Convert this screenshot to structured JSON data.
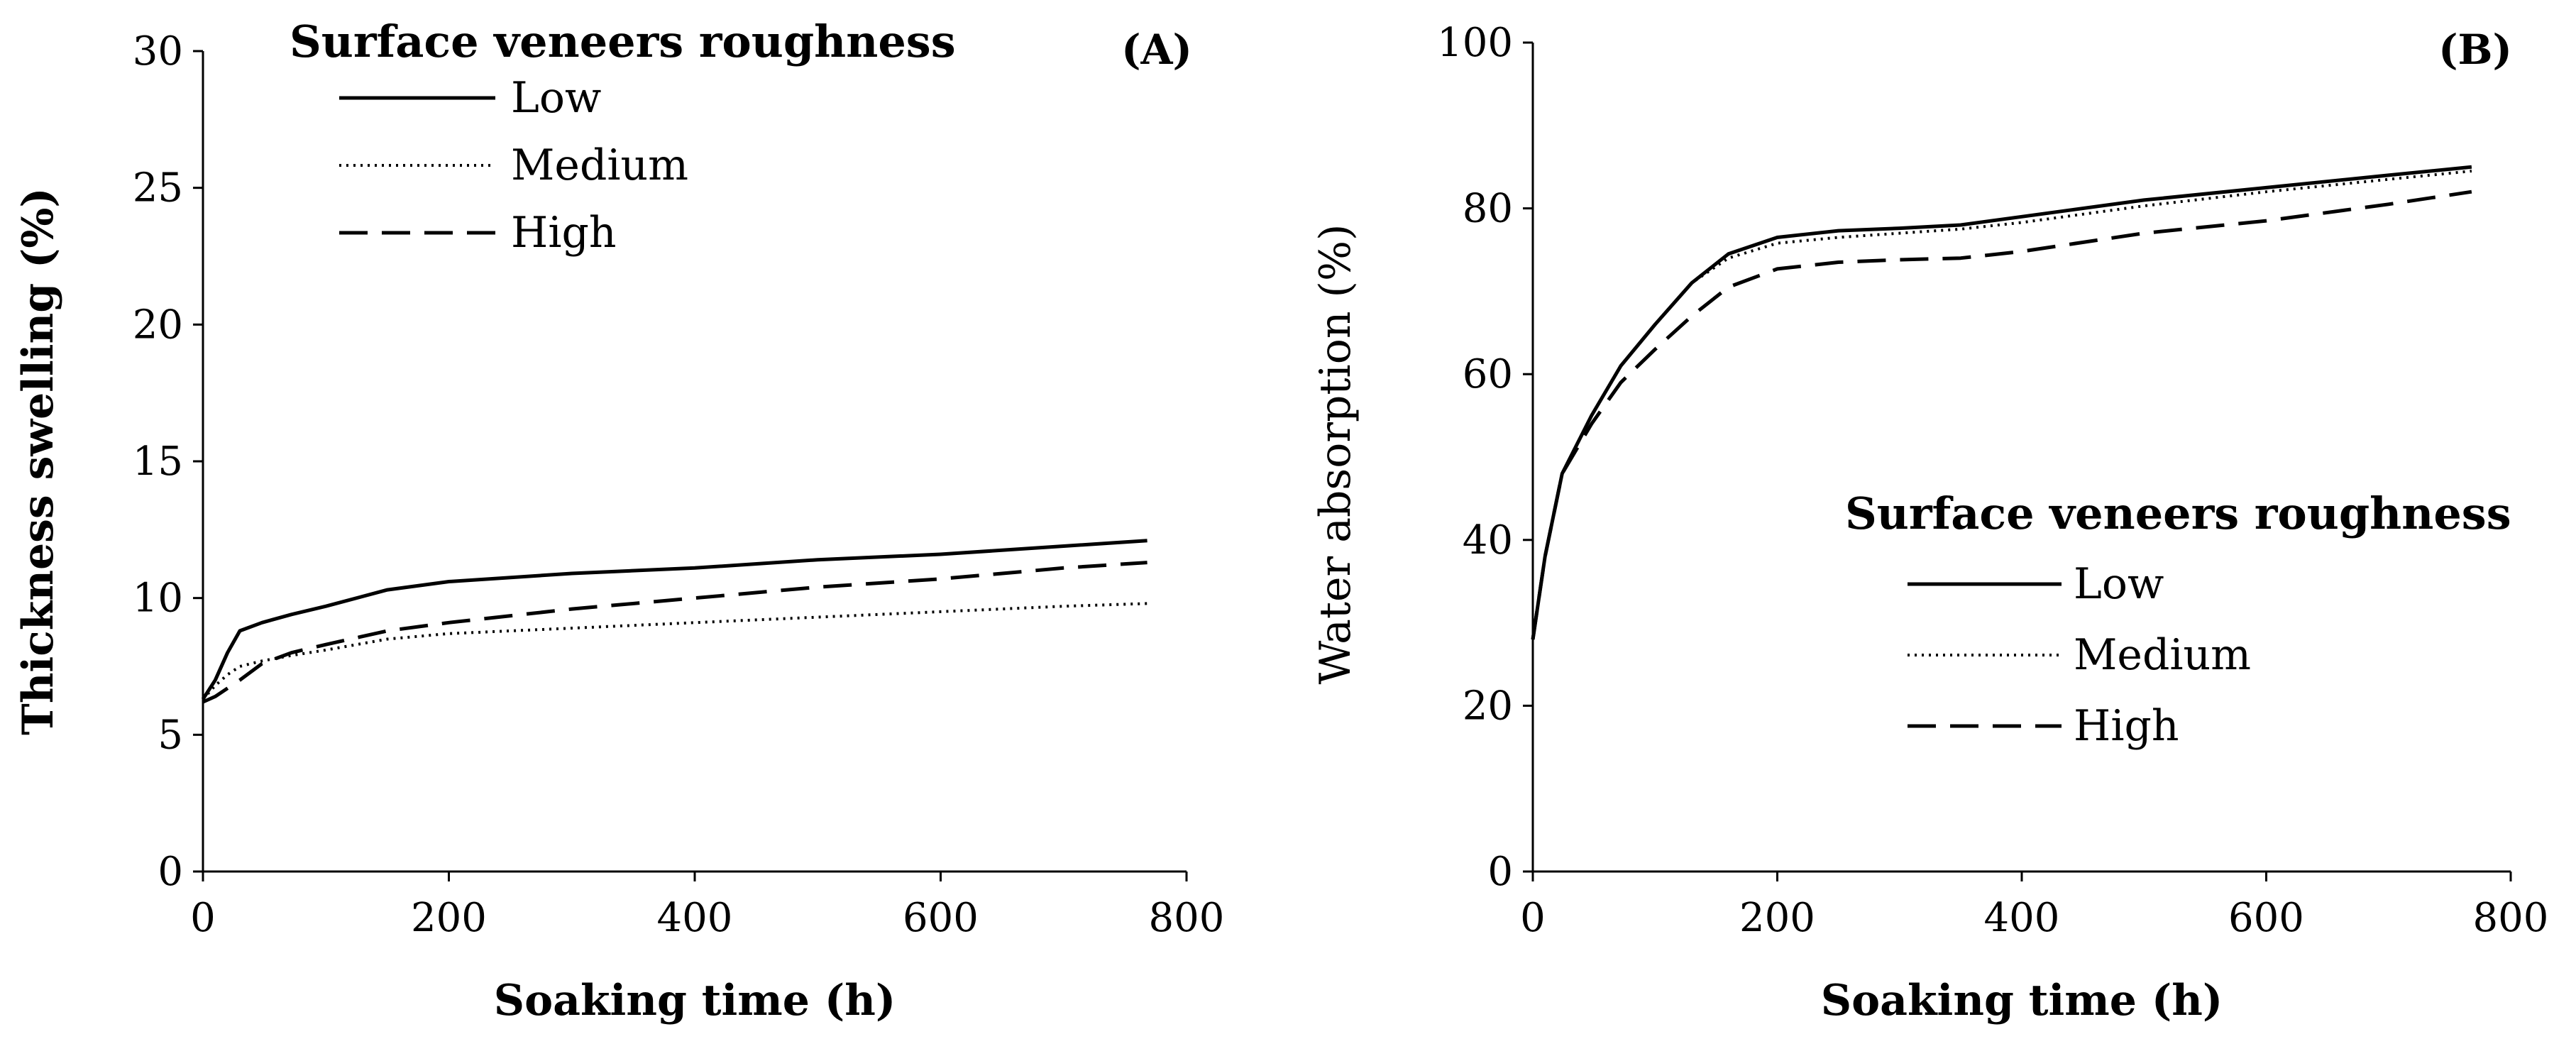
{
  "chart_data": [
    {
      "type": "line",
      "panel_label": "(A)",
      "xlabel": "Soaking time (h)",
      "ylabel": "Thickness swelling (%)",
      "xlim": [
        0,
        800
      ],
      "ylim": [
        0,
        30
      ],
      "xticks": [
        0,
        200,
        400,
        600,
        800
      ],
      "yticks": [
        0,
        5,
        10,
        15,
        20,
        25,
        30
      ],
      "grid": false,
      "legend": {
        "title": "Surface veneers roughness",
        "placement": "top-left",
        "entries": [
          "Low",
          "Medium",
          "High"
        ]
      },
      "series": [
        {
          "name": "Low",
          "dash": "solid",
          "x": [
            0,
            10,
            20,
            30,
            48,
            72,
            100,
            150,
            200,
            300,
            400,
            500,
            600,
            700,
            768
          ],
          "y": [
            6.3,
            7.0,
            8.0,
            8.8,
            9.1,
            9.4,
            9.7,
            10.3,
            10.6,
            10.9,
            11.1,
            11.4,
            11.6,
            11.9,
            12.1
          ]
        },
        {
          "name": "Medium",
          "dash": "dotted",
          "x": [
            0,
            10,
            20,
            30,
            48,
            72,
            100,
            150,
            200,
            300,
            400,
            500,
            600,
            700,
            768
          ],
          "y": [
            6.3,
            6.8,
            7.2,
            7.5,
            7.7,
            7.9,
            8.1,
            8.5,
            8.7,
            8.9,
            9.1,
            9.3,
            9.5,
            9.7,
            9.8
          ]
        },
        {
          "name": "High",
          "dash": "dashed",
          "x": [
            0,
            10,
            20,
            30,
            48,
            72,
            100,
            150,
            200,
            300,
            400,
            500,
            600,
            700,
            768
          ],
          "y": [
            6.2,
            6.4,
            6.7,
            7.0,
            7.6,
            8.0,
            8.3,
            8.8,
            9.1,
            9.6,
            10.0,
            10.4,
            10.7,
            11.1,
            11.3
          ]
        }
      ]
    },
    {
      "type": "line",
      "panel_label": "(B)",
      "xlabel": "Soaking time (h)",
      "ylabel": "Water absorption  (%)",
      "xlim": [
        0,
        800
      ],
      "ylim": [
        0,
        100
      ],
      "xticks": [
        0,
        200,
        400,
        600,
        800
      ],
      "yticks": [
        0,
        20,
        40,
        60,
        80,
        100
      ],
      "grid": false,
      "legend": {
        "title": "Surface veneers roughness",
        "placement": "center-right",
        "entries": [
          "Low",
          "Medium",
          "High"
        ]
      },
      "series": [
        {
          "name": "Low",
          "dash": "solid",
          "x": [
            0,
            10,
            24,
            48,
            72,
            100,
            130,
            160,
            200,
            250,
            300,
            350,
            400,
            500,
            600,
            700,
            768
          ],
          "y": [
            28,
            38,
            48,
            55,
            61,
            66,
            71,
            74.5,
            76.5,
            77.3,
            77.6,
            78.0,
            79.0,
            81.0,
            82.5,
            84.0,
            85.0
          ]
        },
        {
          "name": "Medium",
          "dash": "dotted",
          "x": [
            0,
            10,
            24,
            48,
            72,
            100,
            130,
            160,
            200,
            250,
            300,
            350,
            400,
            500,
            600,
            700,
            768
          ],
          "y": [
            28,
            38,
            48,
            55,
            61,
            66,
            71,
            74.0,
            75.8,
            76.5,
            77.0,
            77.5,
            78.3,
            80.3,
            82.0,
            83.5,
            84.5
          ]
        },
        {
          "name": "High",
          "dash": "dashed",
          "x": [
            0,
            10,
            24,
            48,
            72,
            100,
            130,
            160,
            200,
            250,
            300,
            350,
            400,
            500,
            600,
            700,
            768
          ],
          "y": [
            28,
            38,
            48,
            54,
            59,
            63,
            67,
            70.5,
            72.7,
            73.5,
            73.8,
            74.0,
            74.8,
            77.0,
            78.5,
            80.5,
            82.0
          ]
        }
      ]
    }
  ]
}
